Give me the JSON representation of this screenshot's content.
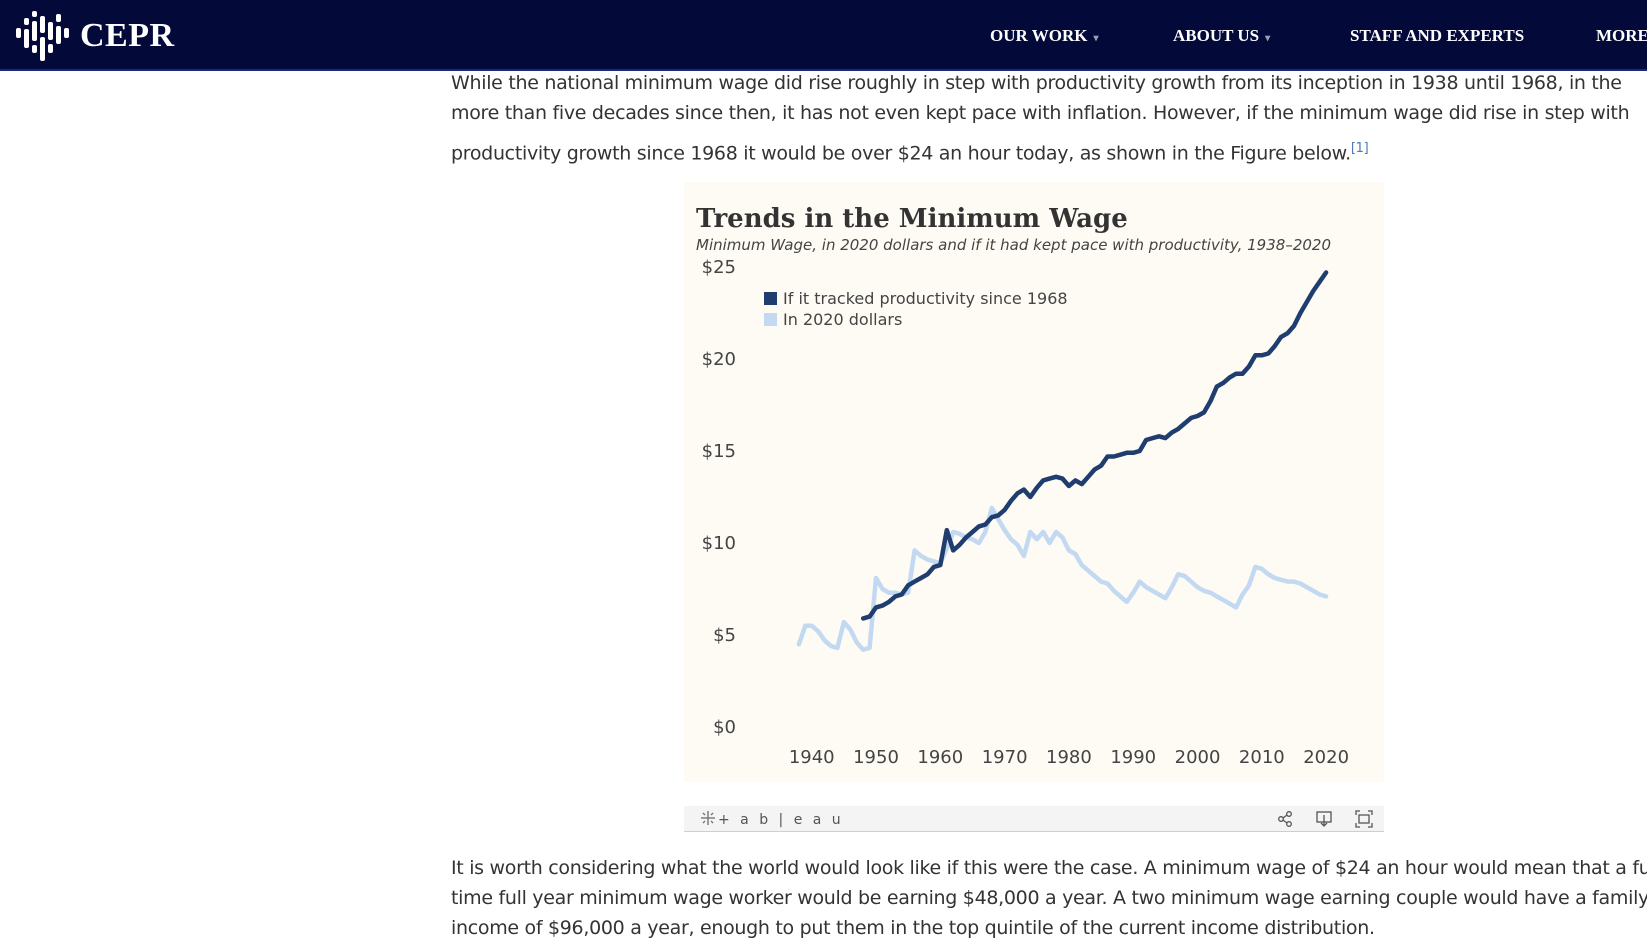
{
  "header": {
    "logo_text": "CEPR",
    "nav": [
      {
        "label": "OUR WORK",
        "has_dropdown": true
      },
      {
        "label": "ABOUT US",
        "has_dropdown": true
      },
      {
        "label": "STAFF AND EXPERTS",
        "has_dropdown": false
      },
      {
        "label": "MORE",
        "has_dropdown": false
      }
    ],
    "colors": {
      "background": "#030a3a",
      "text": "#ffffff"
    }
  },
  "article": {
    "intro_lines": [
      "While the national minimum wage did rise roughly in step with productivity growth from its inception in 1938 until 1968, in the",
      "more than five decades since then, it has not even kept pace with inflation. However, if the minimum wage did rise in step with",
      "productivity growth since 1968 it would be over $24 an hour today, as shown in the Figure below."
    ],
    "footnote_ref": "[1]",
    "outro_lines": [
      "It is worth considering what the world would look like if this were the case. A minimum wage of $24 an hour would mean that a full-",
      "time full year minimum wage worker would be earning $48,000 a year. A two minimum wage earning couple would have a family",
      "income of $96,000 a year, enough to put them in the top quintile of the current income distribution."
    ]
  },
  "tableau": {
    "logo_text": "+ a b | e a u",
    "icons": [
      "share-icon",
      "download-icon",
      "fullscreen-icon"
    ]
  },
  "chart_data": {
    "type": "line",
    "title": "Trends in the Minimum Wage",
    "subtitle": "Minimum Wage, in 2020 dollars and if it had kept pace with productivity, 1938–2020",
    "xlabel": "",
    "ylabel": "",
    "xlim": [
      1936,
      2022
    ],
    "ylim": [
      0,
      25
    ],
    "x_ticks": [
      "1940",
      "1950",
      "1960",
      "1970",
      "1980",
      "1990",
      "2000",
      "2010",
      "2020"
    ],
    "y_ticks": [
      "$0",
      "$5",
      "$10",
      "$15",
      "$20",
      "$25"
    ],
    "grid": false,
    "legend_position": "top-left",
    "series": [
      {
        "name": "If it tracked productivity since 1968",
        "color": "#1f3d6e",
        "x": [
          1948,
          1949,
          1950,
          1951,
          1952,
          1953,
          1954,
          1955,
          1956,
          1957,
          1958,
          1959,
          1960,
          1961,
          1962,
          1963,
          1964,
          1965,
          1966,
          1967,
          1968,
          1969,
          1970,
          1971,
          1972,
          1973,
          1974,
          1975,
          1976,
          1977,
          1978,
          1979,
          1980,
          1981,
          1982,
          1983,
          1984,
          1985,
          1986,
          1987,
          1988,
          1989,
          1990,
          1991,
          1992,
          1993,
          1994,
          1995,
          1996,
          1997,
          1998,
          1999,
          2000,
          2001,
          2002,
          2003,
          2004,
          2005,
          2006,
          2007,
          2008,
          2009,
          2010,
          2011,
          2012,
          2013,
          2014,
          2015,
          2016,
          2017,
          2018,
          2019,
          2020
        ],
        "values": [
          5.9,
          6.0,
          6.5,
          6.6,
          6.8,
          7.1,
          7.2,
          7.7,
          7.9,
          8.1,
          8.3,
          8.7,
          8.8,
          10.7,
          9.6,
          9.9,
          10.3,
          10.6,
          10.9,
          11.0,
          11.4,
          11.5,
          11.8,
          12.3,
          12.7,
          12.9,
          12.5,
          13.0,
          13.4,
          13.5,
          13.6,
          13.5,
          13.1,
          13.4,
          13.2,
          13.6,
          14.0,
          14.2,
          14.7,
          14.7,
          14.8,
          14.9,
          14.9,
          15.0,
          15.6,
          15.7,
          15.8,
          15.7,
          16.0,
          16.2,
          16.5,
          16.8,
          16.9,
          17.1,
          17.7,
          18.5,
          18.7,
          19.0,
          19.2,
          19.2,
          19.6,
          20.2,
          20.2,
          20.3,
          20.7,
          21.2,
          21.4,
          21.8,
          22.5,
          23.1,
          23.7,
          24.2,
          24.7
        ]
      },
      {
        "name": "In 2020 dollars",
        "color": "#c3d9f2",
        "x": [
          1938,
          1939,
          1940,
          1941,
          1942,
          1943,
          1944,
          1945,
          1946,
          1947,
          1948,
          1949,
          1950,
          1951,
          1952,
          1953,
          1954,
          1955,
          1956,
          1957,
          1958,
          1959,
          1960,
          1961,
          1962,
          1963,
          1964,
          1965,
          1966,
          1967,
          1968,
          1969,
          1970,
          1971,
          1972,
          1973,
          1974,
          1975,
          1976,
          1977,
          1978,
          1979,
          1980,
          1981,
          1982,
          1983,
          1984,
          1985,
          1986,
          1987,
          1988,
          1989,
          1990,
          1991,
          1992,
          1993,
          1994,
          1995,
          1996,
          1997,
          1998,
          1999,
          2000,
          2001,
          2002,
          2003,
          2004,
          2005,
          2006,
          2007,
          2008,
          2009,
          2010,
          2011,
          2012,
          2013,
          2014,
          2015,
          2016,
          2017,
          2018,
          2019,
          2020
        ],
        "values": [
          4.5,
          5.5,
          5.5,
          5.2,
          4.7,
          4.4,
          4.3,
          5.7,
          5.3,
          4.6,
          4.2,
          4.3,
          8.1,
          7.5,
          7.3,
          7.3,
          7.2,
          7.3,
          9.6,
          9.3,
          9.1,
          9.0,
          8.9,
          9.7,
          10.6,
          10.5,
          10.3,
          10.2,
          10.0,
          10.6,
          11.9,
          11.3,
          10.7,
          10.2,
          9.9,
          9.3,
          10.6,
          10.2,
          10.6,
          10.0,
          10.6,
          10.3,
          9.6,
          9.4,
          8.8,
          8.5,
          8.2,
          7.9,
          7.8,
          7.4,
          7.1,
          6.8,
          7.3,
          7.9,
          7.6,
          7.4,
          7.2,
          7.0,
          7.6,
          8.3,
          8.2,
          7.9,
          7.6,
          7.4,
          7.3,
          7.1,
          6.9,
          6.7,
          6.5,
          7.2,
          7.7,
          8.7,
          8.6,
          8.3,
          8.1,
          8.0,
          7.9,
          7.9,
          7.8,
          7.6,
          7.4,
          7.2,
          7.1
        ]
      }
    ]
  }
}
